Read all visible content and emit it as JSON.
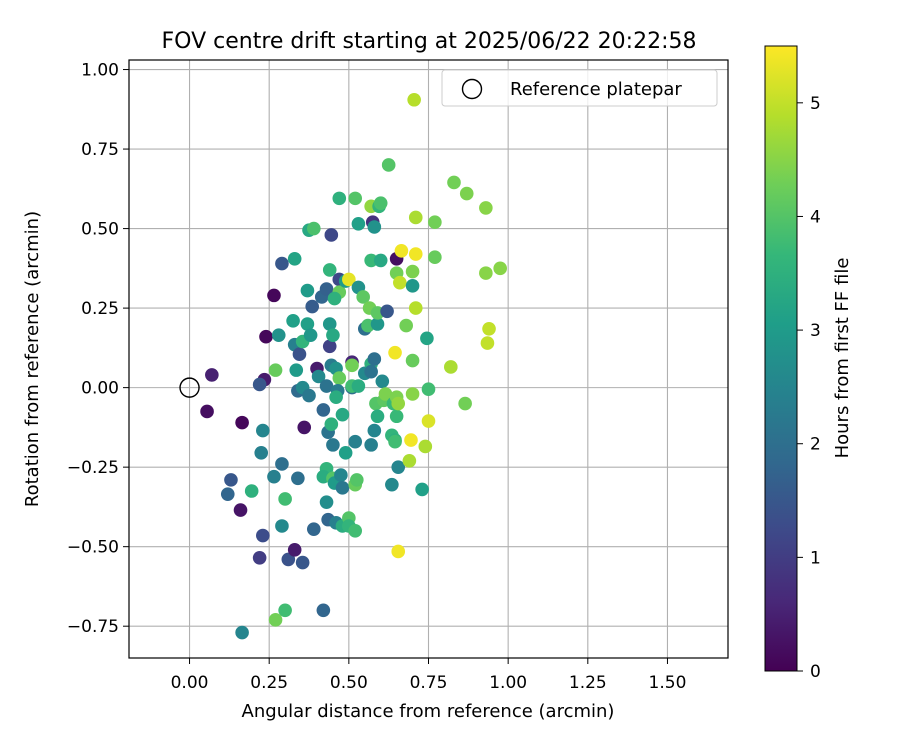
{
  "chart_data": {
    "type": "scatter",
    "title": "FOV centre drift starting at 2025/06/22 20:22:58",
    "xlabel": "Angular distance from reference (arcmin)",
    "ylabel": "Rotation from reference (arcmin)",
    "xlim": [
      -0.19,
      1.69
    ],
    "ylim": [
      -0.85,
      1.03
    ],
    "xticks": [
      0.0,
      0.25,
      0.5,
      0.75,
      1.0,
      1.25,
      1.5
    ],
    "xtick_labels": [
      "0.00",
      "0.25",
      "0.50",
      "0.75",
      "1.00",
      "1.25",
      "1.50"
    ],
    "yticks": [
      -0.75,
      -0.5,
      -0.25,
      0.0,
      0.25,
      0.5,
      0.75,
      1.0
    ],
    "ytick_labels": [
      "−0.75",
      "−0.50",
      "−0.25",
      "0.00",
      "0.25",
      "0.50",
      "0.75",
      "1.00"
    ],
    "grid": true,
    "legend_position": "top-right",
    "legend": [
      {
        "label": "Reference platepar",
        "marker": "open-circle"
      }
    ],
    "reference_point": {
      "x": 0.0,
      "y": 0.0
    },
    "colorbar": {
      "label": "Hours from first FF file",
      "colormap": "viridis",
      "range": [
        0,
        5.5
      ],
      "ticks": [
        0,
        1,
        2,
        3,
        4,
        5
      ],
      "tick_labels": [
        "0",
        "1",
        "2",
        "3",
        "4",
        "5"
      ]
    },
    "points": [
      {
        "x": 0.07,
        "y": 0.04,
        "t": 0.5
      },
      {
        "x": 0.055,
        "y": -0.075,
        "t": 0.2
      },
      {
        "x": 0.165,
        "y": -0.11,
        "t": 0.1
      },
      {
        "x": 0.16,
        "y": -0.385,
        "t": 0.3
      },
      {
        "x": 0.13,
        "y": -0.29,
        "t": 1.5
      },
      {
        "x": 0.12,
        "y": -0.335,
        "t": 1.8
      },
      {
        "x": 0.22,
        "y": -0.535,
        "t": 1.0
      },
      {
        "x": 0.23,
        "y": -0.465,
        "t": 1.3
      },
      {
        "x": 0.235,
        "y": 0.025,
        "t": 0.4
      },
      {
        "x": 0.22,
        "y": 0.01,
        "t": 1.5
      },
      {
        "x": 0.24,
        "y": 0.16,
        "t": 0.1
      },
      {
        "x": 0.265,
        "y": 0.29,
        "t": 0.1
      },
      {
        "x": 0.23,
        "y": -0.135,
        "t": 2.5
      },
      {
        "x": 0.225,
        "y": -0.205,
        "t": 2.4
      },
      {
        "x": 0.265,
        "y": -0.28,
        "t": 2.4
      },
      {
        "x": 0.27,
        "y": 0.055,
        "t": 4.2
      },
      {
        "x": 0.28,
        "y": 0.165,
        "t": 2.8
      },
      {
        "x": 0.29,
        "y": 0.39,
        "t": 1.5
      },
      {
        "x": 0.29,
        "y": -0.24,
        "t": 2.0
      },
      {
        "x": 0.3,
        "y": -0.35,
        "t": 3.8
      },
      {
        "x": 0.29,
        "y": -0.435,
        "t": 2.6
      },
      {
        "x": 0.31,
        "y": -0.54,
        "t": 1.4
      },
      {
        "x": 0.33,
        "y": -0.51,
        "t": 0.4
      },
      {
        "x": 0.355,
        "y": -0.55,
        "t": 1.5
      },
      {
        "x": 0.3,
        "y": -0.7,
        "t": 3.8
      },
      {
        "x": 0.27,
        "y": -0.73,
        "t": 4.3
      },
      {
        "x": 0.165,
        "y": -0.77,
        "t": 2.5
      },
      {
        "x": 0.195,
        "y": -0.325,
        "t": 3.5
      },
      {
        "x": 0.33,
        "y": 0.405,
        "t": 3.2
      },
      {
        "x": 0.325,
        "y": 0.21,
        "t": 3.1
      },
      {
        "x": 0.33,
        "y": 0.135,
        "t": 2.4
      },
      {
        "x": 0.345,
        "y": 0.105,
        "t": 1.4
      },
      {
        "x": 0.355,
        "y": 0.145,
        "t": 3.6
      },
      {
        "x": 0.335,
        "y": 0.055,
        "t": 3.0
      },
      {
        "x": 0.34,
        "y": -0.01,
        "t": 1.9
      },
      {
        "x": 0.355,
        "y": 0.0,
        "t": 2.6
      },
      {
        "x": 0.375,
        "y": -0.025,
        "t": 2.2
      },
      {
        "x": 0.36,
        "y": -0.125,
        "t": 0.3
      },
      {
        "x": 0.34,
        "y": -0.285,
        "t": 2.0
      },
      {
        "x": 0.37,
        "y": 0.305,
        "t": 3.0
      },
      {
        "x": 0.37,
        "y": 0.2,
        "t": 3.1
      },
      {
        "x": 0.38,
        "y": 0.165,
        "t": 2.9
      },
      {
        "x": 0.375,
        "y": 0.495,
        "t": 3.3
      },
      {
        "x": 0.39,
        "y": 0.5,
        "t": 3.9
      },
      {
        "x": 0.385,
        "y": 0.255,
        "t": 1.6
      },
      {
        "x": 0.4,
        "y": 0.06,
        "t": 0.4
      },
      {
        "x": 0.405,
        "y": 0.035,
        "t": 2.6
      },
      {
        "x": 0.42,
        "y": -0.07,
        "t": 1.8
      },
      {
        "x": 0.39,
        "y": -0.445,
        "t": 1.8
      },
      {
        "x": 0.42,
        "y": -0.7,
        "t": 1.8
      },
      {
        "x": 0.415,
        "y": 0.285,
        "t": 1.8
      },
      {
        "x": 0.43,
        "y": 0.31,
        "t": 1.7
      },
      {
        "x": 0.44,
        "y": 0.37,
        "t": 3.6
      },
      {
        "x": 0.445,
        "y": 0.48,
        "t": 1.2
      },
      {
        "x": 0.44,
        "y": 0.2,
        "t": 2.9
      },
      {
        "x": 0.44,
        "y": 0.13,
        "t": 1.1
      },
      {
        "x": 0.45,
        "y": 0.165,
        "t": 3.3
      },
      {
        "x": 0.445,
        "y": 0.07,
        "t": 2.3
      },
      {
        "x": 0.43,
        "y": 0.005,
        "t": 2.1
      },
      {
        "x": 0.435,
        "y": -0.14,
        "t": 2.1
      },
      {
        "x": 0.45,
        "y": -0.18,
        "t": 2.2
      },
      {
        "x": 0.445,
        "y": -0.115,
        "t": 3.5
      },
      {
        "x": 0.43,
        "y": -0.255,
        "t": 3.6
      },
      {
        "x": 0.42,
        "y": -0.28,
        "t": 3.4
      },
      {
        "x": 0.43,
        "y": -0.36,
        "t": 2.7
      },
      {
        "x": 0.435,
        "y": -0.415,
        "t": 1.8
      },
      {
        "x": 0.45,
        "y": -0.285,
        "t": 4.0
      },
      {
        "x": 0.455,
        "y": -0.3,
        "t": 3.0
      },
      {
        "x": 0.46,
        "y": -0.425,
        "t": 2.4
      },
      {
        "x": 0.47,
        "y": 0.34,
        "t": 1.2
      },
      {
        "x": 0.47,
        "y": 0.3,
        "t": 4.2
      },
      {
        "x": 0.455,
        "y": 0.28,
        "t": 3.5
      },
      {
        "x": 0.46,
        "y": 0.06,
        "t": 2.8
      },
      {
        "x": 0.47,
        "y": 0.03,
        "t": 4.2
      },
      {
        "x": 0.465,
        "y": -0.01,
        "t": 2.3
      },
      {
        "x": 0.46,
        "y": -0.03,
        "t": 3.4
      },
      {
        "x": 0.48,
        "y": -0.085,
        "t": 3.3
      },
      {
        "x": 0.475,
        "y": -0.275,
        "t": 2.5
      },
      {
        "x": 0.48,
        "y": -0.315,
        "t": 2.2
      },
      {
        "x": 0.48,
        "y": -0.435,
        "t": 3.4
      },
      {
        "x": 0.47,
        "y": 0.595,
        "t": 3.5
      },
      {
        "x": 0.49,
        "y": 0.335,
        "t": 3.0
      },
      {
        "x": 0.5,
        "y": 0.34,
        "t": 5.3
      },
      {
        "x": 0.49,
        "y": -0.205,
        "t": 3.1
      },
      {
        "x": 0.5,
        "y": -0.41,
        "t": 4.0
      },
      {
        "x": 0.5,
        "y": -0.435,
        "t": 3.6
      },
      {
        "x": 0.51,
        "y": 0.08,
        "t": 0.6
      },
      {
        "x": 0.51,
        "y": 0.07,
        "t": 4.3
      },
      {
        "x": 0.51,
        "y": 0.0,
        "t": 2.0
      },
      {
        "x": 0.51,
        "y": 0.005,
        "t": 3.8
      },
      {
        "x": 0.52,
        "y": 0.595,
        "t": 4.0
      },
      {
        "x": 0.52,
        "y": -0.17,
        "t": 2.4
      },
      {
        "x": 0.52,
        "y": -0.305,
        "t": 4.2
      },
      {
        "x": 0.525,
        "y": -0.29,
        "t": 4.0
      },
      {
        "x": 0.52,
        "y": -0.45,
        "t": 3.8
      },
      {
        "x": 0.53,
        "y": 0.515,
        "t": 3.1
      },
      {
        "x": 0.53,
        "y": 0.315,
        "t": 2.8
      },
      {
        "x": 0.53,
        "y": 0.005,
        "t": 3.4
      },
      {
        "x": 0.545,
        "y": 0.285,
        "t": 4.1
      },
      {
        "x": 0.55,
        "y": 0.185,
        "t": 2.0
      },
      {
        "x": 0.55,
        "y": 0.045,
        "t": 2.6
      },
      {
        "x": 0.56,
        "y": 0.195,
        "t": 3.9
      },
      {
        "x": 0.57,
        "y": 0.57,
        "t": 4.6
      },
      {
        "x": 0.575,
        "y": 0.52,
        "t": 0.8
      },
      {
        "x": 0.57,
        "y": 0.4,
        "t": 3.7
      },
      {
        "x": 0.565,
        "y": 0.25,
        "t": 4.3
      },
      {
        "x": 0.57,
        "y": 0.075,
        "t": 3.5
      },
      {
        "x": 0.57,
        "y": 0.05,
        "t": 2.1
      },
      {
        "x": 0.57,
        "y": -0.18,
        "t": 2.4
      },
      {
        "x": 0.58,
        "y": 0.505,
        "t": 2.8
      },
      {
        "x": 0.58,
        "y": 0.09,
        "t": 2.0
      },
      {
        "x": 0.58,
        "y": -0.135,
        "t": 2.5
      },
      {
        "x": 0.59,
        "y": 0.2,
        "t": 2.9
      },
      {
        "x": 0.59,
        "y": 0.235,
        "t": 4.1
      },
      {
        "x": 0.585,
        "y": -0.05,
        "t": 4.0
      },
      {
        "x": 0.59,
        "y": -0.09,
        "t": 3.4
      },
      {
        "x": 0.595,
        "y": 0.57,
        "t": 3.6
      },
      {
        "x": 0.6,
        "y": 0.58,
        "t": 3.9
      },
      {
        "x": 0.6,
        "y": 0.4,
        "t": 3.3
      },
      {
        "x": 0.605,
        "y": 0.02,
        "t": 2.6
      },
      {
        "x": 0.61,
        "y": -0.04,
        "t": 4.1
      },
      {
        "x": 0.615,
        "y": -0.02,
        "t": 4.4
      },
      {
        "x": 0.62,
        "y": 0.24,
        "t": 1.5
      },
      {
        "x": 0.625,
        "y": 0.7,
        "t": 4.0
      },
      {
        "x": 0.635,
        "y": -0.15,
        "t": 3.6
      },
      {
        "x": 0.635,
        "y": -0.305,
        "t": 2.6
      },
      {
        "x": 0.64,
        "y": -0.05,
        "t": 3.7
      },
      {
        "x": 0.645,
        "y": -0.165,
        "t": 3.5
      },
      {
        "x": 0.645,
        "y": -0.17,
        "t": 3.8
      },
      {
        "x": 0.645,
        "y": 0.11,
        "t": 5.4
      },
      {
        "x": 0.65,
        "y": 0.405,
        "t": 0.2
      },
      {
        "x": 0.65,
        "y": 0.36,
        "t": 4.3
      },
      {
        "x": 0.65,
        "y": -0.03,
        "t": 4.4
      },
      {
        "x": 0.65,
        "y": -0.09,
        "t": 3.7
      },
      {
        "x": 0.655,
        "y": -0.05,
        "t": 4.6
      },
      {
        "x": 0.655,
        "y": -0.25,
        "t": 2.5
      },
      {
        "x": 0.655,
        "y": -0.515,
        "t": 5.4
      },
      {
        "x": 0.66,
        "y": 0.33,
        "t": 5.0
      },
      {
        "x": 0.665,
        "y": 0.43,
        "t": 5.4
      },
      {
        "x": 0.68,
        "y": 0.195,
        "t": 4.3
      },
      {
        "x": 0.69,
        "y": -0.23,
        "t": 4.8
      },
      {
        "x": 0.695,
        "y": -0.165,
        "t": 5.4
      },
      {
        "x": 0.7,
        "y": 0.085,
        "t": 4.2
      },
      {
        "x": 0.7,
        "y": 0.32,
        "t": 2.9
      },
      {
        "x": 0.7,
        "y": 0.365,
        "t": 4.4
      },
      {
        "x": 0.7,
        "y": -0.02,
        "t": 4.5
      },
      {
        "x": 0.705,
        "y": 0.905,
        "t": 4.9
      },
      {
        "x": 0.71,
        "y": 0.535,
        "t": 4.8
      },
      {
        "x": 0.71,
        "y": 0.42,
        "t": 5.4
      },
      {
        "x": 0.71,
        "y": 0.25,
        "t": 4.9
      },
      {
        "x": 0.73,
        "y": -0.32,
        "t": 3.1
      },
      {
        "x": 0.74,
        "y": -0.185,
        "t": 4.8
      },
      {
        "x": 0.745,
        "y": 0.155,
        "t": 3.2
      },
      {
        "x": 0.75,
        "y": -0.005,
        "t": 3.8
      },
      {
        "x": 0.75,
        "y": -0.105,
        "t": 5.2
      },
      {
        "x": 0.77,
        "y": 0.52,
        "t": 4.3
      },
      {
        "x": 0.77,
        "y": 0.41,
        "t": 4.2
      },
      {
        "x": 0.82,
        "y": 0.065,
        "t": 4.8
      },
      {
        "x": 0.83,
        "y": 0.645,
        "t": 4.3
      },
      {
        "x": 0.87,
        "y": 0.61,
        "t": 4.4
      },
      {
        "x": 0.865,
        "y": -0.05,
        "t": 4.3
      },
      {
        "x": 0.93,
        "y": 0.565,
        "t": 4.5
      },
      {
        "x": 0.93,
        "y": 0.36,
        "t": 4.5
      },
      {
        "x": 0.935,
        "y": 0.14,
        "t": 5.0
      },
      {
        "x": 0.94,
        "y": 0.185,
        "t": 5.0
      },
      {
        "x": 0.975,
        "y": 0.375,
        "t": 4.5
      }
    ]
  }
}
